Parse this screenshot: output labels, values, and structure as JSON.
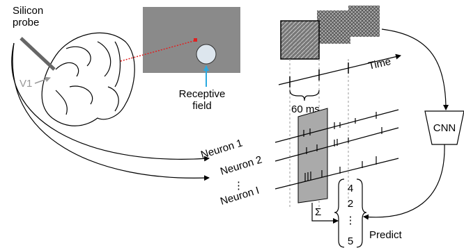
{
  "labels": {
    "probe": [
      "Silicon",
      "probe"
    ],
    "area": "V1",
    "receptive_field": [
      "Receptive",
      "field"
    ],
    "time": "Time",
    "window": "60 ms",
    "model": "CNN",
    "neurons": [
      "Neuron 1",
      "Neuron 2",
      "⋮",
      "Neuron I"
    ],
    "sum": "Σ",
    "vector": [
      "4",
      "2",
      "⋮",
      "5"
    ],
    "predict": "Predict"
  }
}
